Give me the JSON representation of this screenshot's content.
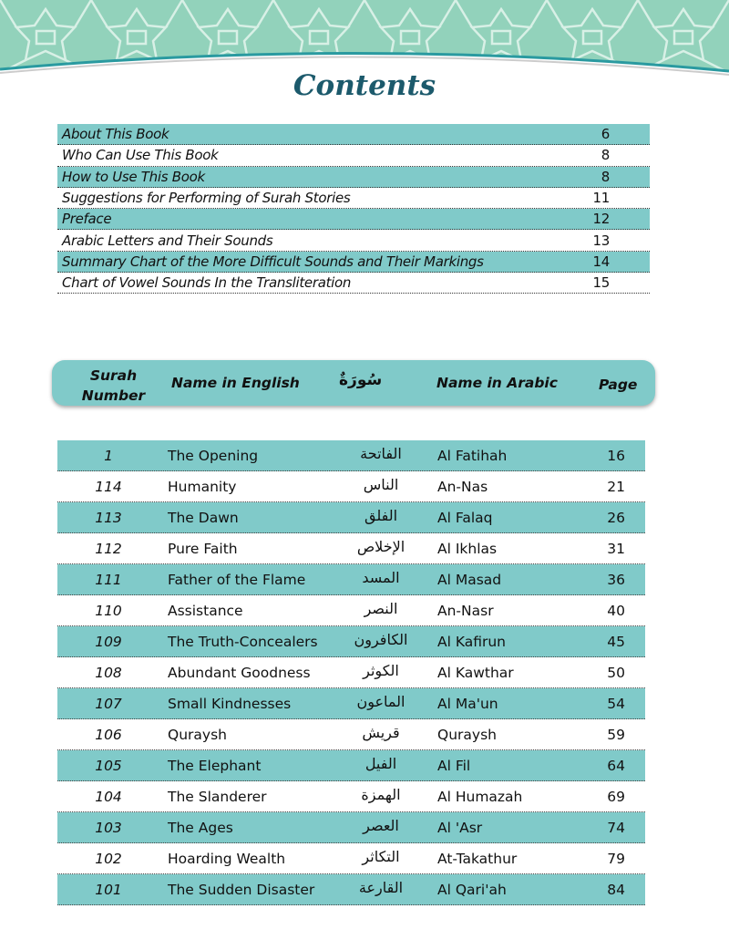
{
  "title": "Contents",
  "toc": [
    {
      "label": "About This Book",
      "page": "6"
    },
    {
      "label": "Who Can Use This Book",
      "page": "8"
    },
    {
      "label": "How to Use This Book",
      "page": "8"
    },
    {
      "label": "Suggestions for Performing of Surah Stories",
      "page": "11"
    },
    {
      "label": "Preface",
      "page": "12"
    },
    {
      "label": "Arabic Letters and Their Sounds",
      "page": "13"
    },
    {
      "label": "Summary Chart of the More Difficult Sounds and Their Markings",
      "page": "14"
    },
    {
      "label": "Chart of Vowel Sounds In the Transliteration",
      "page": "15"
    }
  ],
  "header": {
    "surah": "Surah",
    "number": "Number",
    "english": "Name in English",
    "arabic_word": "سُورَةٌ",
    "arabic": "Name in Arabic",
    "page": "Page"
  },
  "surahs": [
    {
      "num": "1",
      "en": "The Opening",
      "ar": "الفاتحة",
      "tr": "Al Fatihah",
      "page": "16"
    },
    {
      "num": "114",
      "en": "Humanity",
      "ar": "الناس",
      "tr": "An-Nas",
      "page": "21"
    },
    {
      "num": "113",
      "en": "The Dawn",
      "ar": "الفلق",
      "tr": "Al Falaq",
      "page": "26"
    },
    {
      "num": "112",
      "en": "Pure Faith",
      "ar": "الإخلاص",
      "tr": "Al Ikhlas",
      "page": "31"
    },
    {
      "num": "111",
      "en": "Father of the Flame",
      "ar": "المسد",
      "tr": "Al Masad",
      "page": "36"
    },
    {
      "num": "110",
      "en": "Assistance",
      "ar": "النصر",
      "tr": "An-Nasr",
      "page": "40"
    },
    {
      "num": "109",
      "en": "The Truth-Concealers",
      "ar": "الكافرون",
      "tr": "Al Kafirun",
      "page": "45"
    },
    {
      "num": "108",
      "en": "Abundant Goodness",
      "ar": "الكوثر",
      "tr": "Al Kawthar",
      "page": "50"
    },
    {
      "num": "107",
      "en": "Small Kindnesses",
      "ar": "الماعون",
      "tr": "Al Ma'un",
      "page": "54"
    },
    {
      "num": "106",
      "en": "Quraysh",
      "ar": "قريش",
      "tr": "Quraysh",
      "page": "59"
    },
    {
      "num": "105",
      "en": "The Elephant",
      "ar": "الفيل",
      "tr": "Al Fil",
      "page": "64"
    },
    {
      "num": "104",
      "en": "The Slanderer",
      "ar": "الهمزة",
      "tr": "Al Humazah",
      "page": "69"
    },
    {
      "num": "103",
      "en": "The Ages",
      "ar": "العصر",
      "tr": "Al 'Asr",
      "page": "74"
    },
    {
      "num": "102",
      "en": "Hoarding Wealth",
      "ar": "التكاثر",
      "tr": "At-Takathur",
      "page": "79"
    },
    {
      "num": "101",
      "en": "The Sudden Disaster",
      "ar": "القارعة",
      "tr": "Al Qari'ah",
      "page": "84"
    }
  ],
  "colors": {
    "accent": "#80cac9",
    "banner": "#92d2bb",
    "title": "#1c5a6c"
  }
}
